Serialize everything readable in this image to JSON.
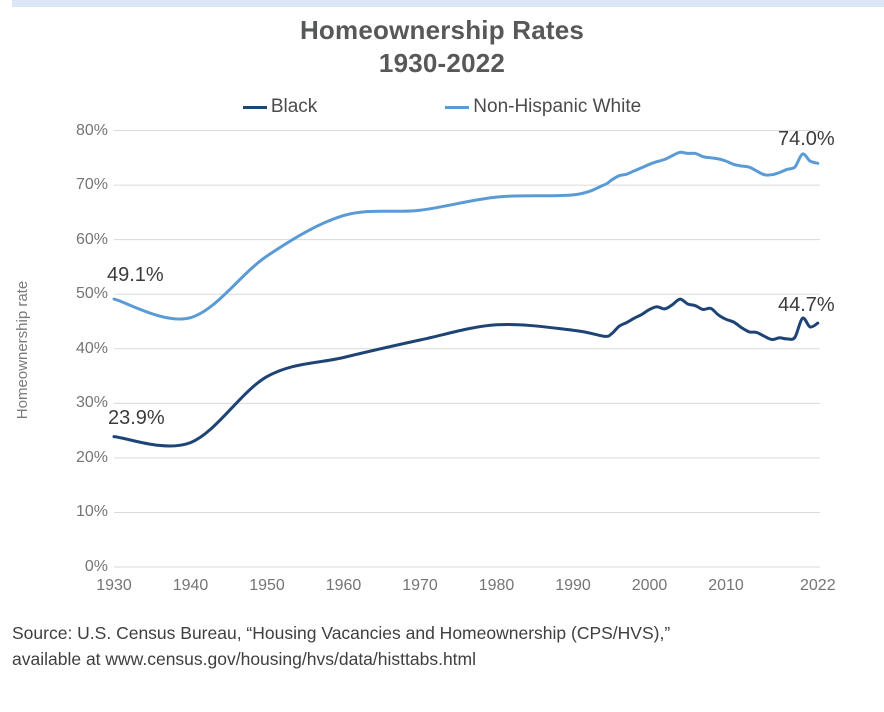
{
  "colors": {
    "top_bar": "#d9e7f7",
    "gridline": "#dadada",
    "black_series": "#1e4476",
    "white_series": "#5b9bd5"
  },
  "title": {
    "line1": "Homeownership Rates",
    "line2": "1930-2022"
  },
  "legend": [
    {
      "label": "Black",
      "color": "#1e4476"
    },
    {
      "label": "Non-Hispanic White",
      "color": "#5b9bd5"
    }
  ],
  "annotations": {
    "white_start": {
      "text": "49.1%",
      "series": "Non-Hispanic White",
      "year": 1930,
      "value": 49.1
    },
    "black_start": {
      "text": "23.9%",
      "series": "Black",
      "year": 1930,
      "value": 23.9
    },
    "white_end": {
      "text": "74.0%",
      "series": "Non-Hispanic White",
      "year": 2022,
      "value": 74.0
    },
    "black_end": {
      "text": "44.7%",
      "series": "Black",
      "year": 2022,
      "value": 44.7
    }
  },
  "source": {
    "line1": "Source: U.S. Census Bureau, “Housing Vacancies and Homeownership (CPS/HVS),”",
    "line2": "available at www.census.gov/housing/hvs/data/histtabs.html"
  },
  "chart_data": {
    "type": "line",
    "title": "Homeownership Rates 1930-2022",
    "xlabel": "",
    "ylabel": "Homeownership rate",
    "xlim": [
      1930,
      2022
    ],
    "ylim": [
      0,
      80
    ],
    "grid": "horizontal",
    "legend_position": "top",
    "x": [
      1930,
      1940,
      1950,
      1960,
      1970,
      1980,
      1990,
      1994,
      1995,
      1996,
      1997,
      1998,
      1999,
      2000,
      2001,
      2002,
      2003,
      2004,
      2005,
      2006,
      2007,
      2008,
      2009,
      2010,
      2011,
      2012,
      2013,
      2014,
      2015,
      2016,
      2017,
      2018,
      2019,
      2020,
      2021,
      2022
    ],
    "series": [
      {
        "name": "Black",
        "color": "#1e4476",
        "values": [
          23.9,
          22.8,
          34.9,
          38.4,
          41.6,
          44.4,
          43.4,
          42.3,
          42.7,
          44.1,
          44.8,
          45.6,
          46.3,
          47.2,
          47.7,
          47.3,
          48.1,
          49.1,
          48.2,
          47.9,
          47.2,
          47.4,
          46.2,
          45.4,
          44.9,
          43.9,
          43.1,
          43.0,
          42.3,
          41.7,
          42.0,
          41.8,
          42.1,
          45.6,
          44.0,
          44.7
        ]
      },
      {
        "name": "Non-Hispanic White",
        "color": "#5b9bd5",
        "values": [
          49.1,
          45.7,
          57.0,
          64.4,
          65.4,
          67.8,
          68.2,
          70.0,
          70.9,
          71.7,
          72.0,
          72.6,
          73.2,
          73.8,
          74.3,
          74.7,
          75.4,
          76.0,
          75.8,
          75.8,
          75.2,
          75.0,
          74.8,
          74.4,
          73.8,
          73.5,
          73.3,
          72.6,
          71.9,
          71.9,
          72.3,
          72.9,
          73.3,
          75.7,
          74.4,
          74.0
        ]
      }
    ],
    "y_ticks": [
      {
        "value": 0,
        "label": "0%"
      },
      {
        "value": 10,
        "label": "10%"
      },
      {
        "value": 20,
        "label": "20%"
      },
      {
        "value": 30,
        "label": "30%"
      },
      {
        "value": 40,
        "label": "40%"
      },
      {
        "value": 50,
        "label": "50%"
      },
      {
        "value": 60,
        "label": "60%"
      },
      {
        "value": 70,
        "label": "70%"
      },
      {
        "value": 80,
        "label": "80%"
      }
    ],
    "x_ticks": [
      {
        "value": 1930,
        "label": "1930"
      },
      {
        "value": 1940,
        "label": "1940"
      },
      {
        "value": 1950,
        "label": "1950"
      },
      {
        "value": 1960,
        "label": "1960"
      },
      {
        "value": 1970,
        "label": "1970"
      },
      {
        "value": 1980,
        "label": "1980"
      },
      {
        "value": 1990,
        "label": "1990"
      },
      {
        "value": 2000,
        "label": "2000"
      },
      {
        "value": 2010,
        "label": "2010"
      },
      {
        "value": 2022,
        "label": "2022"
      }
    ]
  }
}
